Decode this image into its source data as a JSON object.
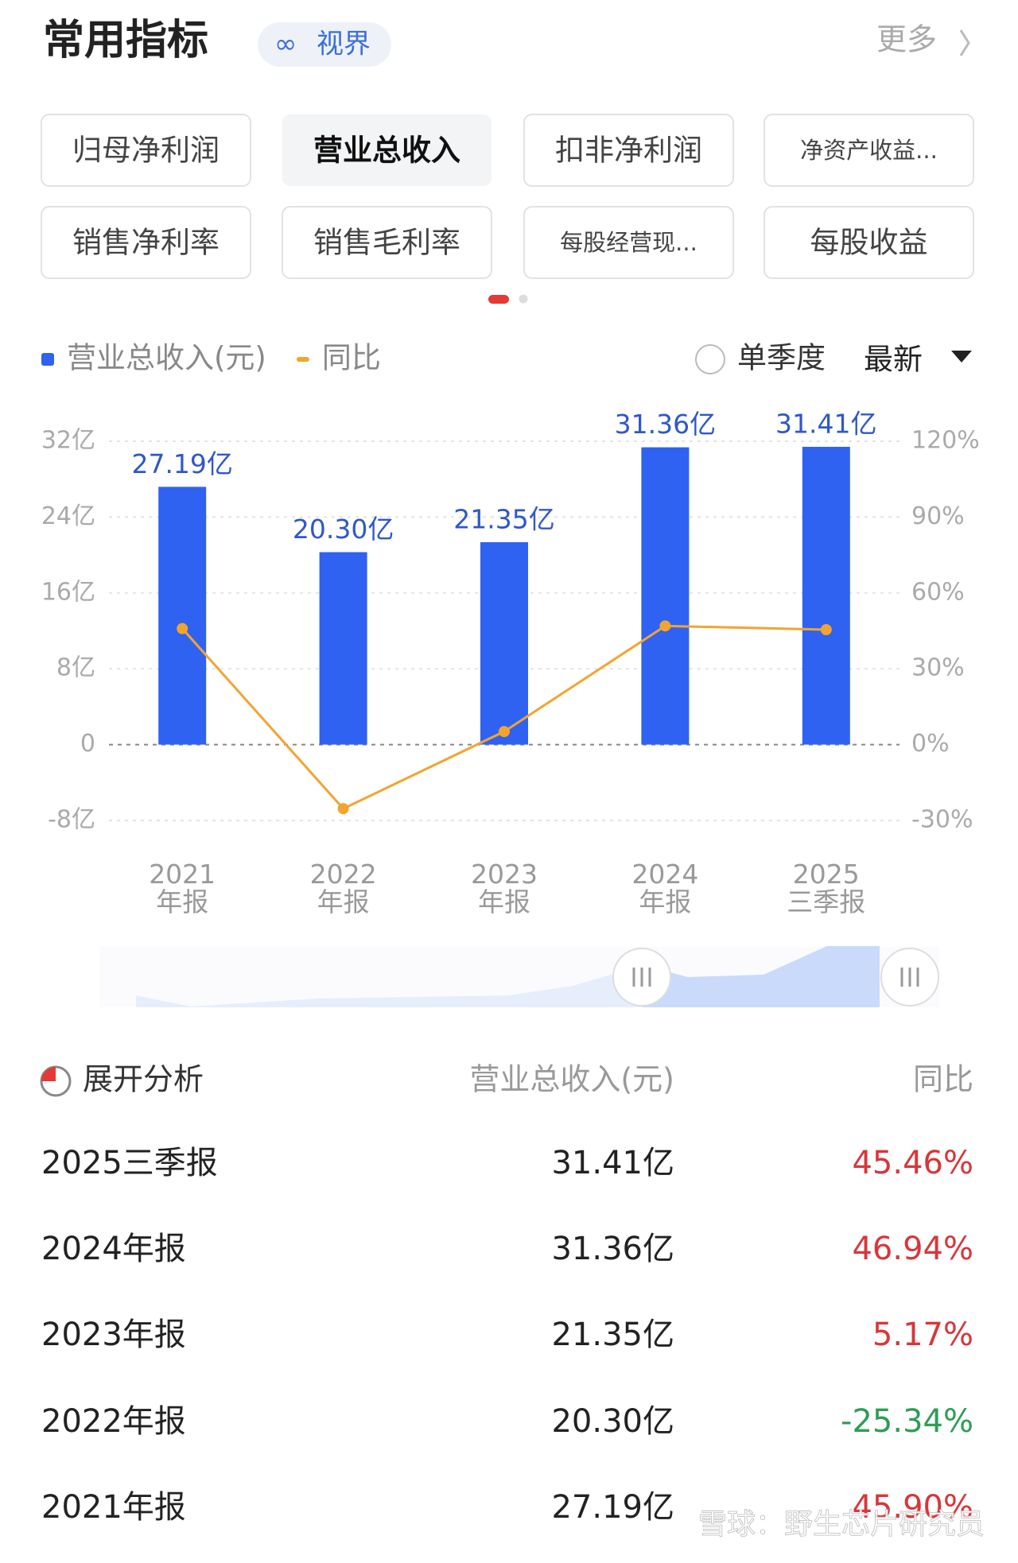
{
  "header": {
    "title": "常用指标",
    "badge": "视界",
    "more": "更多"
  },
  "tabs": [
    "归母净利润",
    "营业总收入",
    "扣非净利润",
    "净资产收益...",
    "销售净利率",
    "销售毛利率",
    "每股经营现...",
    "每股收益"
  ],
  "controls": {
    "single_quarter": "单季度",
    "latest": "最新"
  },
  "chart_data": {
    "type": "bar",
    "categories": [
      "2021\n年报",
      "2022\n年报",
      "2023\n年报",
      "2024\n年报",
      "2025\n三季报"
    ],
    "series": [
      {
        "name": "营业总收入(元)",
        "color": "#2f62f0",
        "values": [
          27.19,
          20.3,
          21.35,
          31.36,
          31.41
        ],
        "value_labels": [
          "27.19亿",
          "20.30亿",
          "21.35亿",
          "31.36亿",
          "31.41亿"
        ]
      },
      {
        "name": "同比",
        "type": "line",
        "axis": "y2",
        "color": "#f3a42e",
        "values": [
          45.9,
          -25.34,
          5.17,
          46.94,
          45.46
        ]
      }
    ],
    "ylim": [
      -8,
      32
    ],
    "yticks": [
      {
        "value": 32,
        "label": "32亿"
      },
      {
        "value": 24,
        "label": "24亿"
      },
      {
        "value": 16,
        "label": "16亿"
      },
      {
        "value": 8,
        "label": "8亿"
      },
      0,
      {
        "value": -8,
        "label": "-8亿"
      }
    ],
    "y2lim": [
      -30,
      120
    ],
    "y2ticks": [
      {
        "value": 120,
        "label": "120%"
      },
      {
        "value": 90,
        "label": "90%"
      },
      {
        "value": 60,
        "label": "60%"
      },
      {
        "value": 30,
        "label": "30%"
      },
      {
        "value": 0,
        "label": "0%"
      },
      {
        "value": -30,
        "label": "-30%"
      }
    ],
    "grid": true
  },
  "table": {
    "header": [
      "展开分析",
      "营业总收入(元)",
      "同比"
    ],
    "rows": [
      {
        "period": "2025三季报",
        "value": "31.41亿",
        "yoy": "45.46%",
        "color": "#d8363a"
      },
      {
        "period": "2024年报",
        "value": "31.36亿",
        "yoy": "46.94%",
        "color": "#d8363a"
      },
      {
        "period": "2023年报",
        "value": "21.35亿",
        "yoy": "5.17%",
        "color": "#d8363a"
      },
      {
        "period": "2022年报",
        "value": "20.30亿",
        "yoy": "-25.34%",
        "color": "#2e9d55"
      },
      {
        "period": "2021年报",
        "value": "27.19亿",
        "yoy": "45.90%",
        "color": "#d8363a"
      }
    ]
  },
  "watermark": "雪球：野生芯片研究员"
}
